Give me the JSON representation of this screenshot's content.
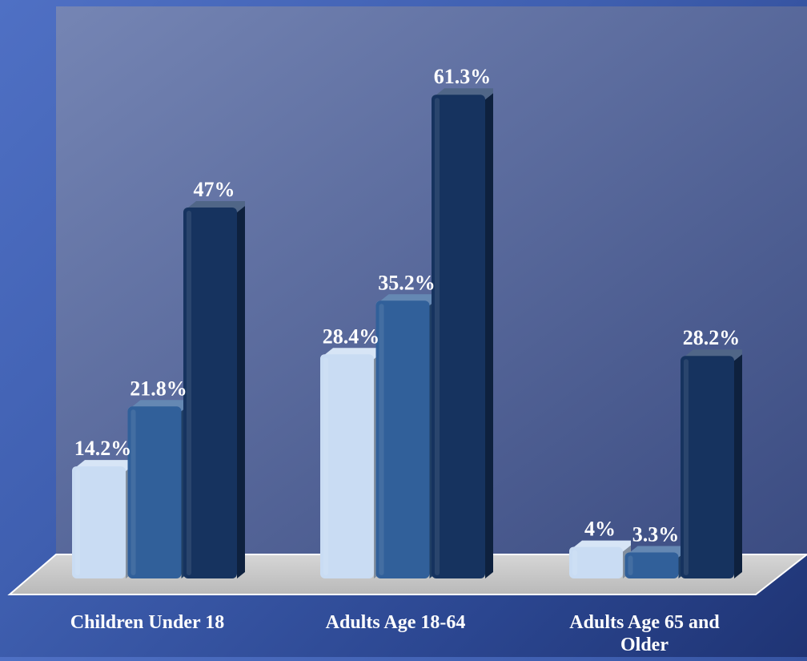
{
  "chart_data": {
    "type": "bar",
    "categories": [
      "Children Under 18",
      "Adults Age 18-64",
      "Adults Age 65 and Older"
    ],
    "category_label_lines": [
      [
        "Children Under 18"
      ],
      [
        "Adults Age 18-64"
      ],
      [
        "Adults Age 65 and",
        "Older"
      ]
    ],
    "series": [
      {
        "values": [
          14.2,
          28.4,
          4
        ],
        "color": "#c9dcf3"
      },
      {
        "values": [
          21.8,
          35.2,
          3.3
        ],
        "color": "#31609a"
      },
      {
        "values": [
          47,
          61.3,
          28.2
        ],
        "color": "#16335f"
      }
    ],
    "data_labels": [
      [
        "14.2%",
        "28.4%",
        "4%"
      ],
      [
        "21.8%",
        "35.2%",
        "3.3%"
      ],
      [
        "47%",
        "61.3%",
        "28.2%"
      ]
    ],
    "ylim": [
      0,
      100
    ],
    "title": "",
    "xlabel": "",
    "ylabel": "",
    "legend": "none",
    "grid": false,
    "colors": {
      "floor": "#c8c8c8",
      "plot_background_start": "#7585b4",
      "plot_background_end": "#3b4c82",
      "text": "#ffffff"
    }
  }
}
